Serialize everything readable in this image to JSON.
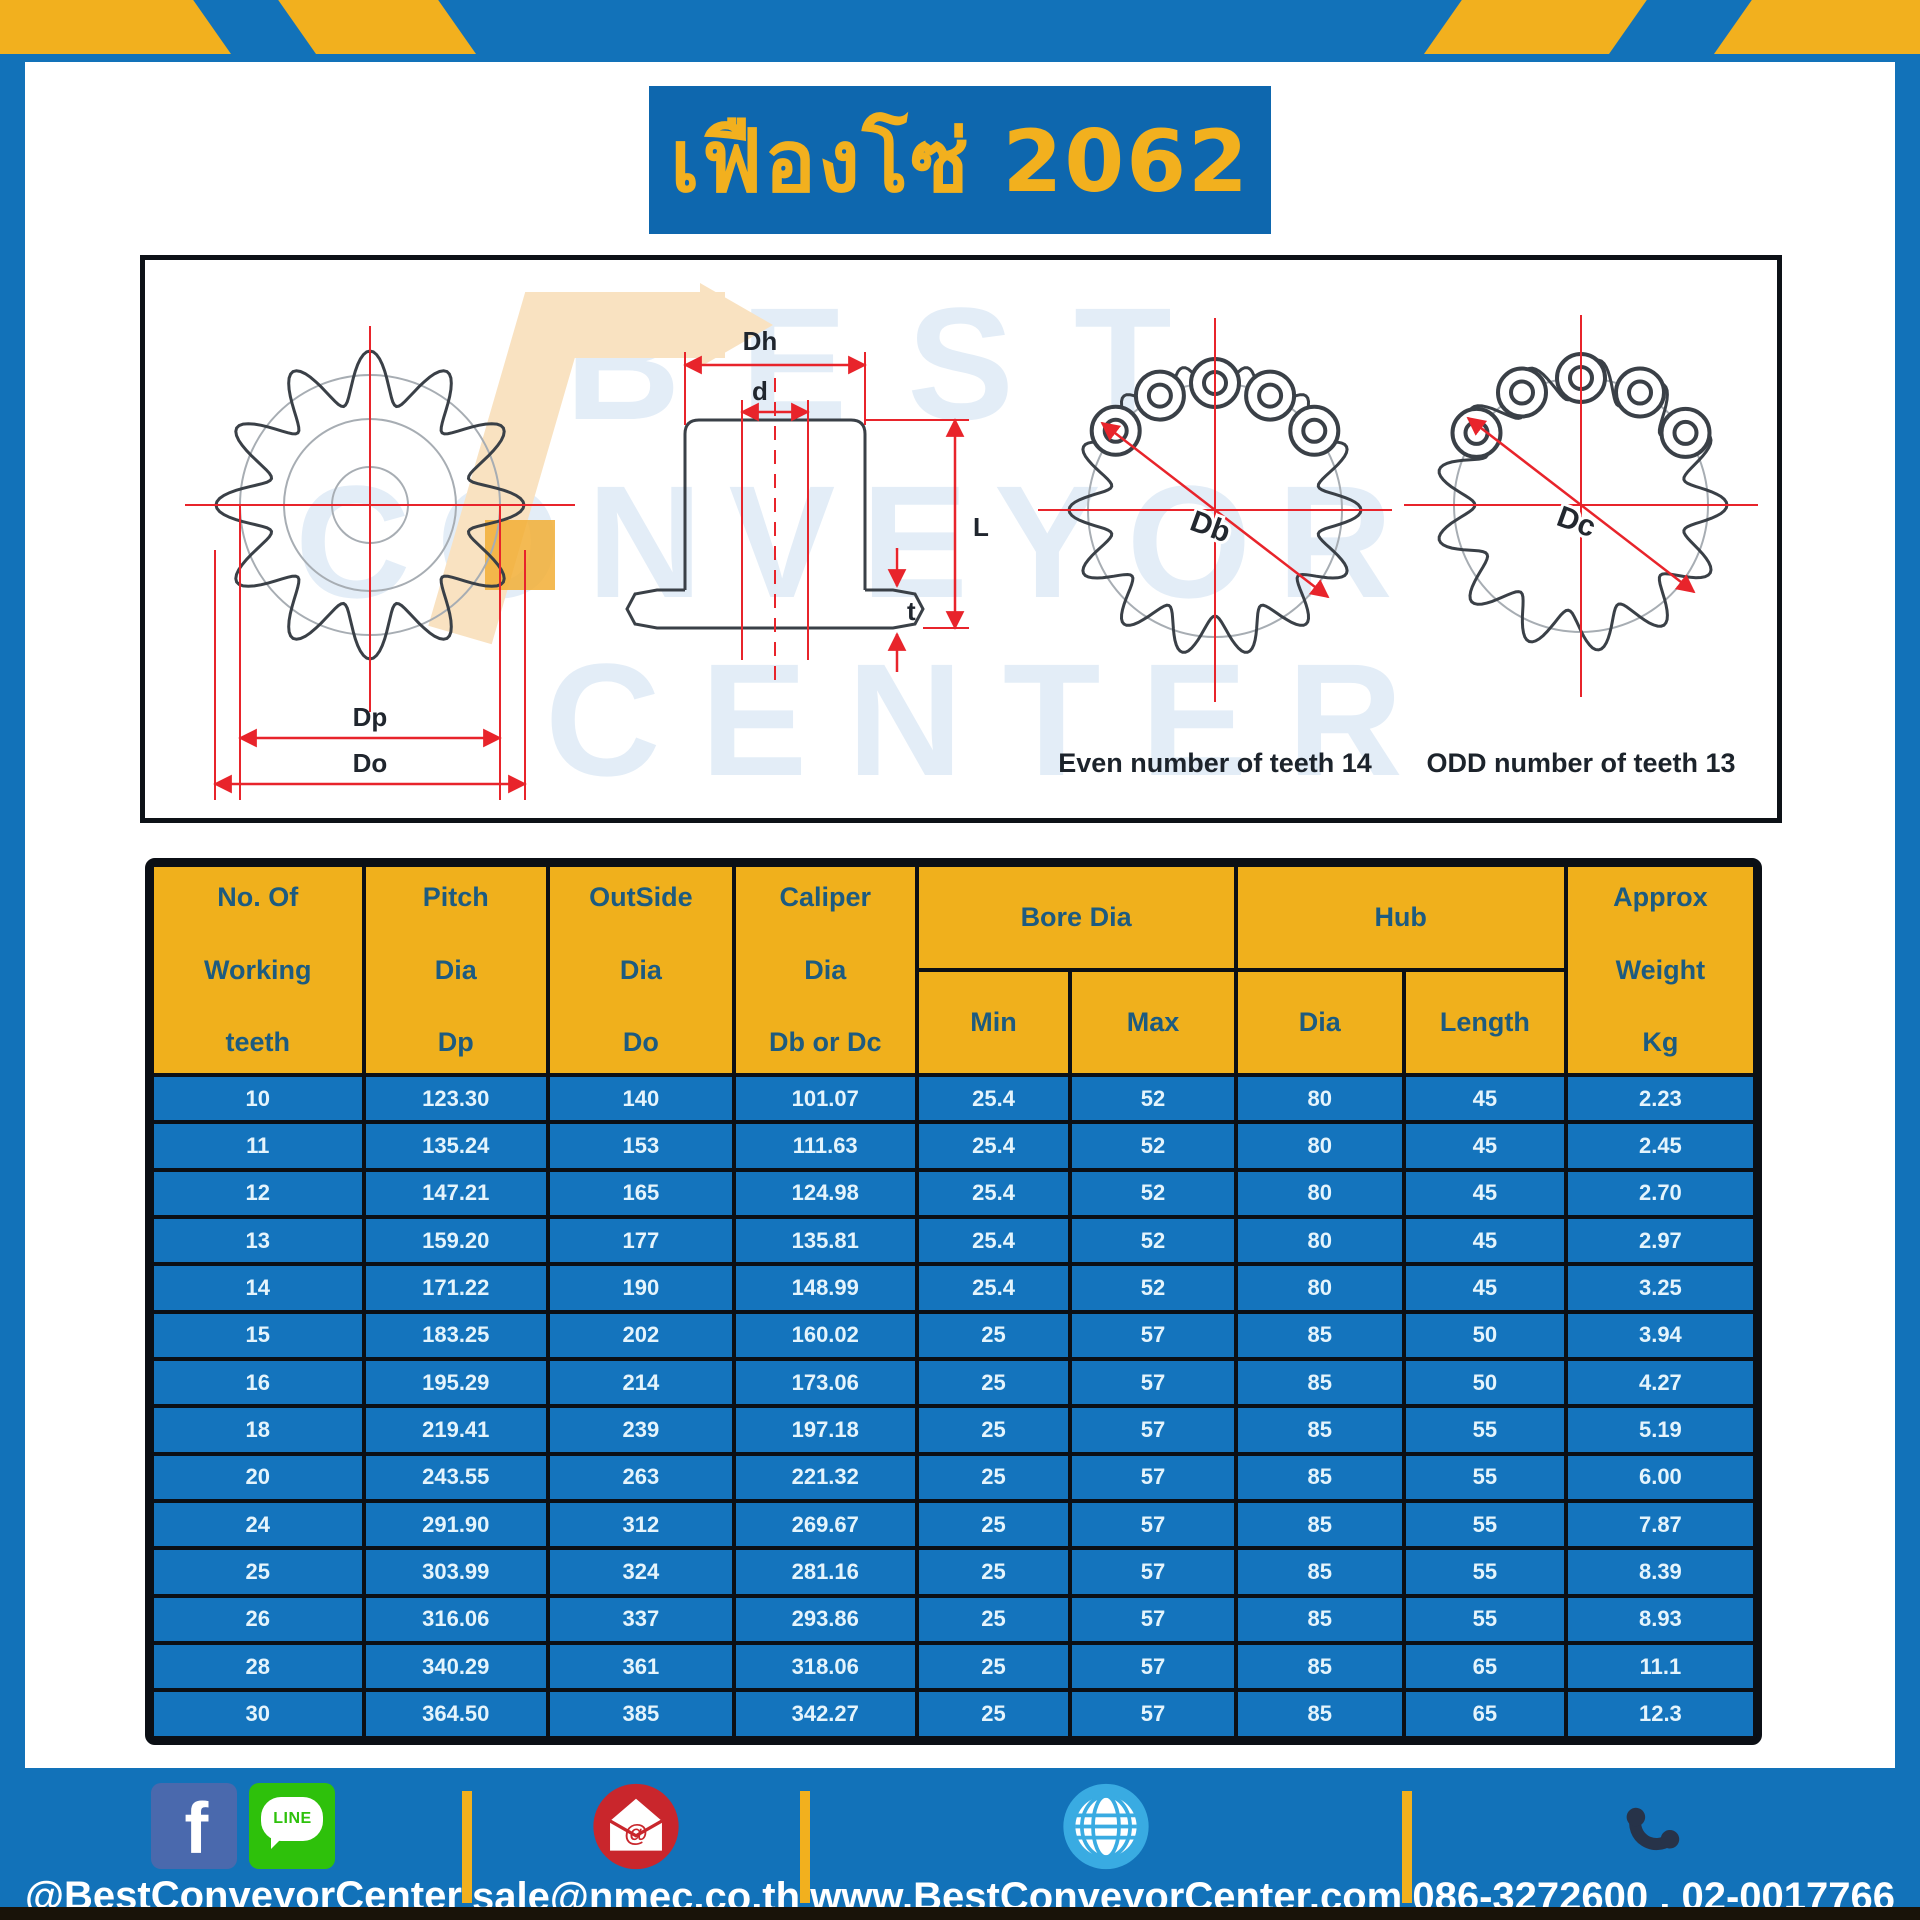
{
  "title": "เฟืองโซ่ 2062",
  "colors": {
    "brand_blue": "#1272b9",
    "brand_yellow": "#f2b01e",
    "table_row_blue": "#1474bd",
    "table_header_yellow": "#f0b01c",
    "dimension_red": "#e8242b"
  },
  "diagram": {
    "labels": {
      "pitch_dia": "Dp",
      "outside_dia": "Do",
      "hub_dia": "Dh",
      "bore_dia": "d",
      "hub_length": "L",
      "plate_thickness": "t",
      "even_caliper": "Db",
      "odd_caliper": "Dc"
    },
    "caption_even": "Even number of teeth 14",
    "caption_odd": "ODD number of teeth 13",
    "watermark_lines": [
      "BEST",
      "CONVEYOR",
      "CENTER"
    ]
  },
  "table": {
    "header": {
      "teeth": [
        "No. Of",
        "Working",
        "teeth"
      ],
      "pitch": [
        "Pitch",
        "Dia",
        "Dp"
      ],
      "outside": [
        "OutSide",
        "Dia",
        "Do"
      ],
      "caliper": [
        "Caliper",
        "Dia",
        "Db or Dc"
      ],
      "bore_group": "Bore Dia",
      "hub_group": "Hub",
      "min": "Min",
      "max": "Max",
      "hub_dia": "Dia",
      "hub_length": "Length",
      "weight": [
        "Approx",
        "Weight",
        "Kg"
      ]
    },
    "rows": [
      [
        "10",
        "123.30",
        "140",
        "101.07",
        "25.4",
        "52",
        "80",
        "45",
        "2.23"
      ],
      [
        "11",
        "135.24",
        "153",
        "111.63",
        "25.4",
        "52",
        "80",
        "45",
        "2.45"
      ],
      [
        "12",
        "147.21",
        "165",
        "124.98",
        "25.4",
        "52",
        "80",
        "45",
        "2.70"
      ],
      [
        "13",
        "159.20",
        "177",
        "135.81",
        "25.4",
        "52",
        "80",
        "45",
        "2.97"
      ],
      [
        "14",
        "171.22",
        "190",
        "148.99",
        "25.4",
        "52",
        "80",
        "45",
        "3.25"
      ],
      [
        "15",
        "183.25",
        "202",
        "160.02",
        "25",
        "57",
        "85",
        "50",
        "3.94"
      ],
      [
        "16",
        "195.29",
        "214",
        "173.06",
        "25",
        "57",
        "85",
        "50",
        "4.27"
      ],
      [
        "18",
        "219.41",
        "239",
        "197.18",
        "25",
        "57",
        "85",
        "55",
        "5.19"
      ],
      [
        "20",
        "243.55",
        "263",
        "221.32",
        "25",
        "57",
        "85",
        "55",
        "6.00"
      ],
      [
        "24",
        "291.90",
        "312",
        "269.67",
        "25",
        "57",
        "85",
        "55",
        "7.87"
      ],
      [
        "25",
        "303.99",
        "324",
        "281.16",
        "25",
        "57",
        "85",
        "55",
        "8.39"
      ],
      [
        "26",
        "316.06",
        "337",
        "293.86",
        "25",
        "57",
        "85",
        "55",
        "8.93"
      ],
      [
        "28",
        "340.29",
        "361",
        "318.06",
        "25",
        "57",
        "85",
        "65",
        "11.1"
      ],
      [
        "30",
        "364.50",
        "385",
        "342.27",
        "25",
        "57",
        "85",
        "65",
        "12.3"
      ]
    ]
  },
  "footer": {
    "facebook_label": "f",
    "line_label": "LINE",
    "social_handle": "@BestConveyorCenter",
    "email": "sale@nmec.co.th",
    "website": "www.BestConveyorCenter.com",
    "phones": "086-3272600 , 02-0017766"
  }
}
